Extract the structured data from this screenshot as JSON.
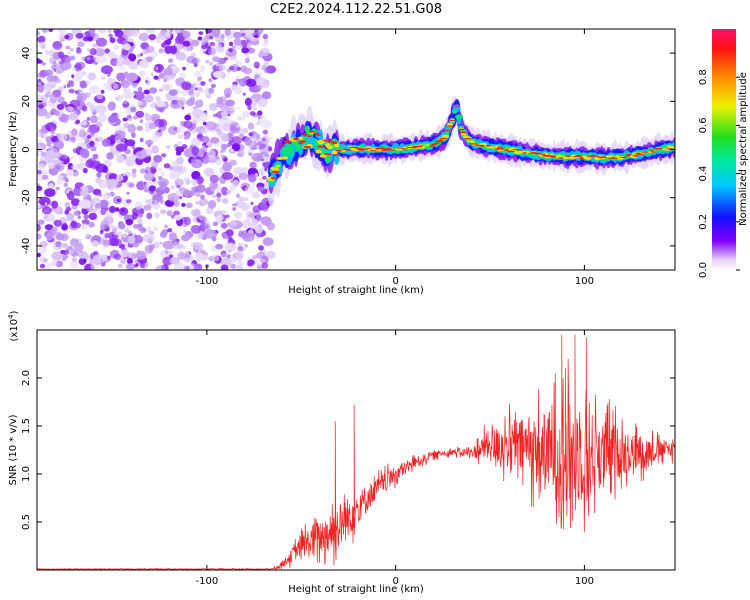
{
  "title": "C2E2.2024.112.22.51.G08",
  "colors": {
    "snr_line": "#ee2222",
    "axis": "#000000",
    "background": "#ffffff"
  },
  "chart_data": [
    {
      "type": "heatmap",
      "xlabel": "Height of straight line (km)",
      "ylabel": "Frequency (Hz)",
      "xlim": [
        -190,
        148
      ],
      "ylim": [
        -50,
        50
      ],
      "x_ticks": [
        "-100",
        "0",
        "100"
      ],
      "x_tick_values": [
        -100,
        0,
        100
      ],
      "y_ticks": [
        "-40",
        "-20",
        "0",
        "20",
        "40"
      ],
      "y_tick_values": [
        -40,
        -20,
        0,
        20,
        40
      ],
      "colorbar": {
        "label": "Normalized spectral amplitude",
        "range": [
          0,
          1
        ],
        "tick_labels": [
          "0.0",
          "0.2",
          "0.4",
          "0.6",
          "0.8"
        ],
        "tick_values": [
          0.0,
          0.2,
          0.4,
          0.6,
          0.8
        ]
      },
      "noise_region_x": [
        -190,
        -66
      ],
      "ridge": {
        "x": [
          -66,
          -60,
          -52,
          -44,
          -38,
          -30,
          -20,
          -10,
          0,
          10,
          20,
          26,
          30,
          32,
          35,
          40,
          50,
          60,
          70,
          80,
          90,
          100,
          110,
          120,
          130,
          140,
          148
        ],
        "freq": [
          -12,
          -2,
          3,
          6,
          0,
          0,
          0.5,
          0,
          0,
          1,
          2,
          5,
          12,
          19,
          8,
          3,
          1,
          0,
          -1.5,
          -2.5,
          -3,
          -3,
          -3.5,
          -3,
          -2,
          0,
          1
        ]
      }
    },
    {
      "type": "line",
      "xlabel": "Height of straight line (km)",
      "ylabel": "SNR (10 * v/v)",
      "y_scale_note": "(x10",
      "y_scale_exp": "4",
      "xlim": [
        -190,
        148
      ],
      "ylim": [
        0,
        2.5
      ],
      "x_ticks": [
        "-100",
        "0",
        "100"
      ],
      "x_tick_values": [
        -100,
        0,
        100
      ],
      "y_ticks": [
        "0.5",
        "1.0",
        "1.5",
        "2.0"
      ],
      "y_tick_values": [
        0.5,
        1.0,
        1.5,
        2.0
      ],
      "series": [
        {
          "envelope_x": [
            -190,
            -66,
            -62,
            -55,
            -50,
            -45,
            -40,
            -35,
            -30,
            -25,
            -20,
            -10,
            0,
            10,
            20,
            30,
            40,
            45,
            50,
            60,
            70,
            80,
            90,
            100,
            110,
            120,
            130,
            140,
            148
          ],
          "envelope_mean": [
            0.01,
            0.01,
            0.03,
            0.15,
            0.25,
            0.3,
            0.35,
            0.4,
            0.45,
            0.55,
            0.65,
            0.85,
            1.0,
            1.12,
            1.2,
            1.23,
            1.22,
            1.26,
            1.3,
            1.3,
            1.28,
            1.22,
            1.2,
            1.2,
            1.22,
            1.22,
            1.23,
            1.25,
            1.27
          ],
          "envelope_amp": [
            0.005,
            0.005,
            0.02,
            0.1,
            0.15,
            0.25,
            0.25,
            0.3,
            0.35,
            0.3,
            0.25,
            0.15,
            0.12,
            0.08,
            0.05,
            0.04,
            0.08,
            0.15,
            0.25,
            0.35,
            0.45,
            0.6,
            0.8,
            0.7,
            0.5,
            0.35,
            0.25,
            0.15,
            0.12
          ],
          "spikes_x": [
            -32,
            -22,
            88,
            95,
            101,
            90
          ],
          "spikes_y": [
            1.55,
            1.72,
            2.45,
            2.45,
            2.42,
            2.1
          ]
        }
      ]
    }
  ]
}
